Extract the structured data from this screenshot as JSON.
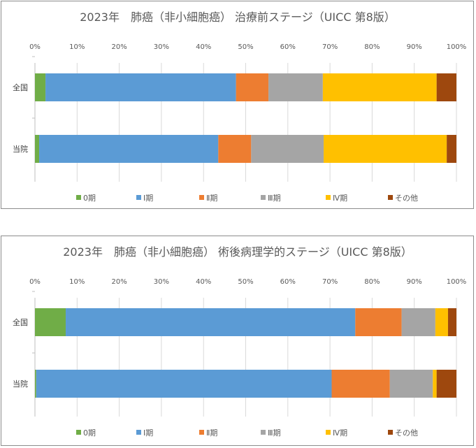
{
  "chart_data": [
    {
      "type": "bar",
      "orientation": "horizontal",
      "stacked": "percent",
      "title": "2023年　肺癌（非小細胞癌）  治療前ステージ（UICC 第8版）",
      "categories": [
        "全国",
        "当院"
      ],
      "x_ticks": [
        "0%",
        "10%",
        "20%",
        "30%",
        "40%",
        "50%",
        "60%",
        "70%",
        "80%",
        "90%",
        "100%"
      ],
      "xlim": [
        0,
        100
      ],
      "grid": true,
      "legend_position": "bottom",
      "series": [
        {
          "name": "0期",
          "color": "#70ad47",
          "values": [
            2.5,
            1.0
          ]
        },
        {
          "name": "Ⅰ期",
          "color": "#5b9bd5",
          "values": [
            45.2,
            42.5
          ]
        },
        {
          "name": "Ⅱ期",
          "color": "#ed7d31",
          "values": [
            7.7,
            7.8
          ]
        },
        {
          "name": "Ⅲ期",
          "color": "#a5a5a5",
          "values": [
            12.9,
            17.2
          ]
        },
        {
          "name": "Ⅳ期",
          "color": "#ffc000",
          "values": [
            27.0,
            29.2
          ]
        },
        {
          "name": "その他",
          "color": "#9e480e",
          "values": [
            4.7,
            2.3
          ]
        }
      ]
    },
    {
      "type": "bar",
      "orientation": "horizontal",
      "stacked": "percent",
      "title": "2023年　肺癌（非小細胞癌）  術後病理学的ステージ（UICC 第8版）",
      "categories": [
        "全国",
        "当院"
      ],
      "x_ticks": [
        "0%",
        "10%",
        "20%",
        "30%",
        "40%",
        "50%",
        "60%",
        "70%",
        "80%",
        "90%",
        "100%"
      ],
      "xlim": [
        0,
        100
      ],
      "grid": true,
      "legend_position": "bottom",
      "series": [
        {
          "name": "0期",
          "color": "#70ad47",
          "values": [
            7.3,
            0.3
          ]
        },
        {
          "name": "Ⅰ期",
          "color": "#5b9bd5",
          "values": [
            68.7,
            70.1
          ]
        },
        {
          "name": "Ⅱ期",
          "color": "#ed7d31",
          "values": [
            11.0,
            13.8
          ]
        },
        {
          "name": "Ⅲ期",
          "color": "#a5a5a5",
          "values": [
            8.0,
            10.2
          ]
        },
        {
          "name": "Ⅳ期",
          "color": "#ffc000",
          "values": [
            3.0,
            0.9
          ]
        },
        {
          "name": "その他",
          "color": "#9e480e",
          "values": [
            2.0,
            4.7
          ]
        }
      ]
    }
  ]
}
